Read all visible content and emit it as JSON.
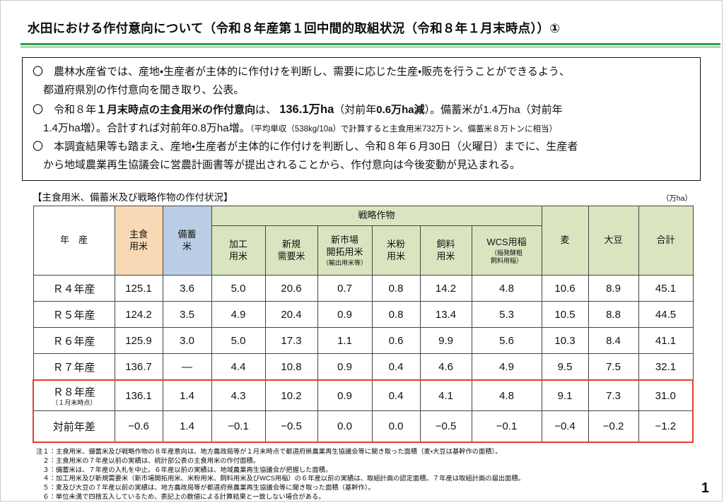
{
  "colors": {
    "rule_green": "#2f9e44",
    "staple_fill": "#f9d8b6",
    "reserve_fill": "#b9cee5",
    "strategic_fill": "#d9e5c1",
    "highlight_red": "#e53c2e"
  },
  "page": {
    "title": "水田における作付意向について（令和８年産第１回中間的取組状況（令和８年１月末時点））①",
    "page_number": "1"
  },
  "summary": {
    "bullets": [
      {
        "lines": [
          [
            {
              "t": "〇　農林水産省では、産地・生産者が主体的に作付けを判断し、需要に応じた生産・販売を行うことができるよう、"
            }
          ],
          [
            {
              "t": "都道府県別の作付意向を聞き取り、公表。"
            }
          ]
        ]
      },
      {
        "lines": [
          [
            {
              "t": "〇　令和８年"
            },
            {
              "t": "１月末時点の主食用米の作付意向",
              "b": true
            },
            {
              "t": "は、 "
            },
            {
              "t": "136.1万ha",
              "big": true
            },
            {
              "t": "（対前年"
            },
            {
              "t": "0.6万ha減",
              "b": true
            },
            {
              "t": "）。備蓄米が1.4万ha（対前年"
            }
          ],
          [
            {
              "t": "1.4万ha増）。合計すれば対前年0.8万ha増。"
            },
            {
              "t": "（平均単収（538kg/10a）で計算すると主食用米732万トン、備蓄米８万トンに相当）",
              "small": true
            }
          ]
        ]
      },
      {
        "lines": [
          [
            {
              "t": "〇　本調査結果等も踏まえ、産地・生産者が主体的に作付けを判断し、令和８年６月30日（火曜日）までに、生産者"
            }
          ],
          [
            {
              "t": "から地域農業再生協議会に営農計画書等が提出されることから、作付意向は今後変動が見込まれる。"
            }
          ]
        ]
      }
    ]
  },
  "table": {
    "caption": "【主食用米、備蓄米及び戦略作物の作付状況】",
    "unit": "（万ha）",
    "headers": {
      "year": "年　産",
      "staple": "主食\n用米",
      "reserve": "備蓄\n米",
      "strategic": "戦略作物",
      "wheat": "麦",
      "soybean": "大豆",
      "total": "合計",
      "sub": [
        {
          "main": "加工\n用米",
          "small": ""
        },
        {
          "main": "新規\n需要米",
          "small": ""
        },
        {
          "main": "新市場\n開拓用米",
          "small": "（輸出用米等）"
        },
        {
          "main": "米粉\n用米",
          "small": ""
        },
        {
          "main": "飼料\n用米",
          "small": ""
        },
        {
          "main": "WCS用稲",
          "small": "（稲発酵粗\n飼料用稲）"
        }
      ]
    },
    "rows": [
      {
        "label": "Ｒ４年産",
        "sublabel": "",
        "values": [
          "125.1",
          "3.6",
          "5.0",
          "20.6",
          "0.7",
          "0.8",
          "14.2",
          "4.8",
          "10.6",
          "8.9",
          "45.1"
        ],
        "highlight": false
      },
      {
        "label": "Ｒ５年産",
        "sublabel": "",
        "values": [
          "124.2",
          "3.5",
          "4.9",
          "20.4",
          "0.9",
          "0.8",
          "13.4",
          "5.3",
          "10.5",
          "8.8",
          "44.5"
        ],
        "highlight": false
      },
      {
        "label": "Ｒ６年産",
        "sublabel": "",
        "values": [
          "125.9",
          "3.0",
          "5.0",
          "17.3",
          "1.1",
          "0.6",
          "9.9",
          "5.6",
          "10.3",
          "8.4",
          "41.1"
        ],
        "highlight": false
      },
      {
        "label": "Ｒ７年産",
        "sublabel": "",
        "values": [
          "136.7",
          "—",
          "4.4",
          "10.8",
          "0.9",
          "0.4",
          "4.6",
          "4.9",
          "9.5",
          "7.5",
          "32.1"
        ],
        "highlight": false
      },
      {
        "label": "Ｒ８年産",
        "sublabel": "（１月末時点）",
        "values": [
          "136.1",
          "1.4",
          "4.3",
          "10.2",
          "0.9",
          "0.4",
          "4.1",
          "4.8",
          "9.1",
          "7.3",
          "31.0"
        ],
        "highlight": true
      },
      {
        "label": "対前年差",
        "sublabel": "",
        "values": [
          "−0.6",
          "1.4",
          "−0.1",
          "−0.5",
          "0.0",
          "0.0",
          "−0.5",
          "−0.1",
          "−0.4",
          "−0.2",
          "−1.2"
        ],
        "highlight": true
      }
    ]
  },
  "footnotes": [
    "注１：主食用米、備蓄米及び戦略作物の８年産意向は、地方農政局等が１月末時点で都道府県農業再生協議会等に聞き取った面積（麦・大豆は基幹作の面積）。",
    "　２：主食用米の７年産以前の実績は、統計部公表の主食用米の作付面積。",
    "　３：備蓄米は、７年産の入札を中止。６年産以前の実績は、地域農業再生協議会が把握した面積。",
    "　４：加工用米及び新規需要米（新市場開拓用米、米粉用米、飼料用米及びWCS用稲）の６年産以前の実績は、取組計画の認定面積。７年産は取組計画の届出面積。",
    "　５：麦及び大豆の７年産以前の実績は、地方農政局等が都道府県農業再生協議会等に聞き取った面積（基幹作）。",
    "　６：単位未満で四捨五入しているため、表記上の数値による計算結果と一致しない場合がある。"
  ]
}
